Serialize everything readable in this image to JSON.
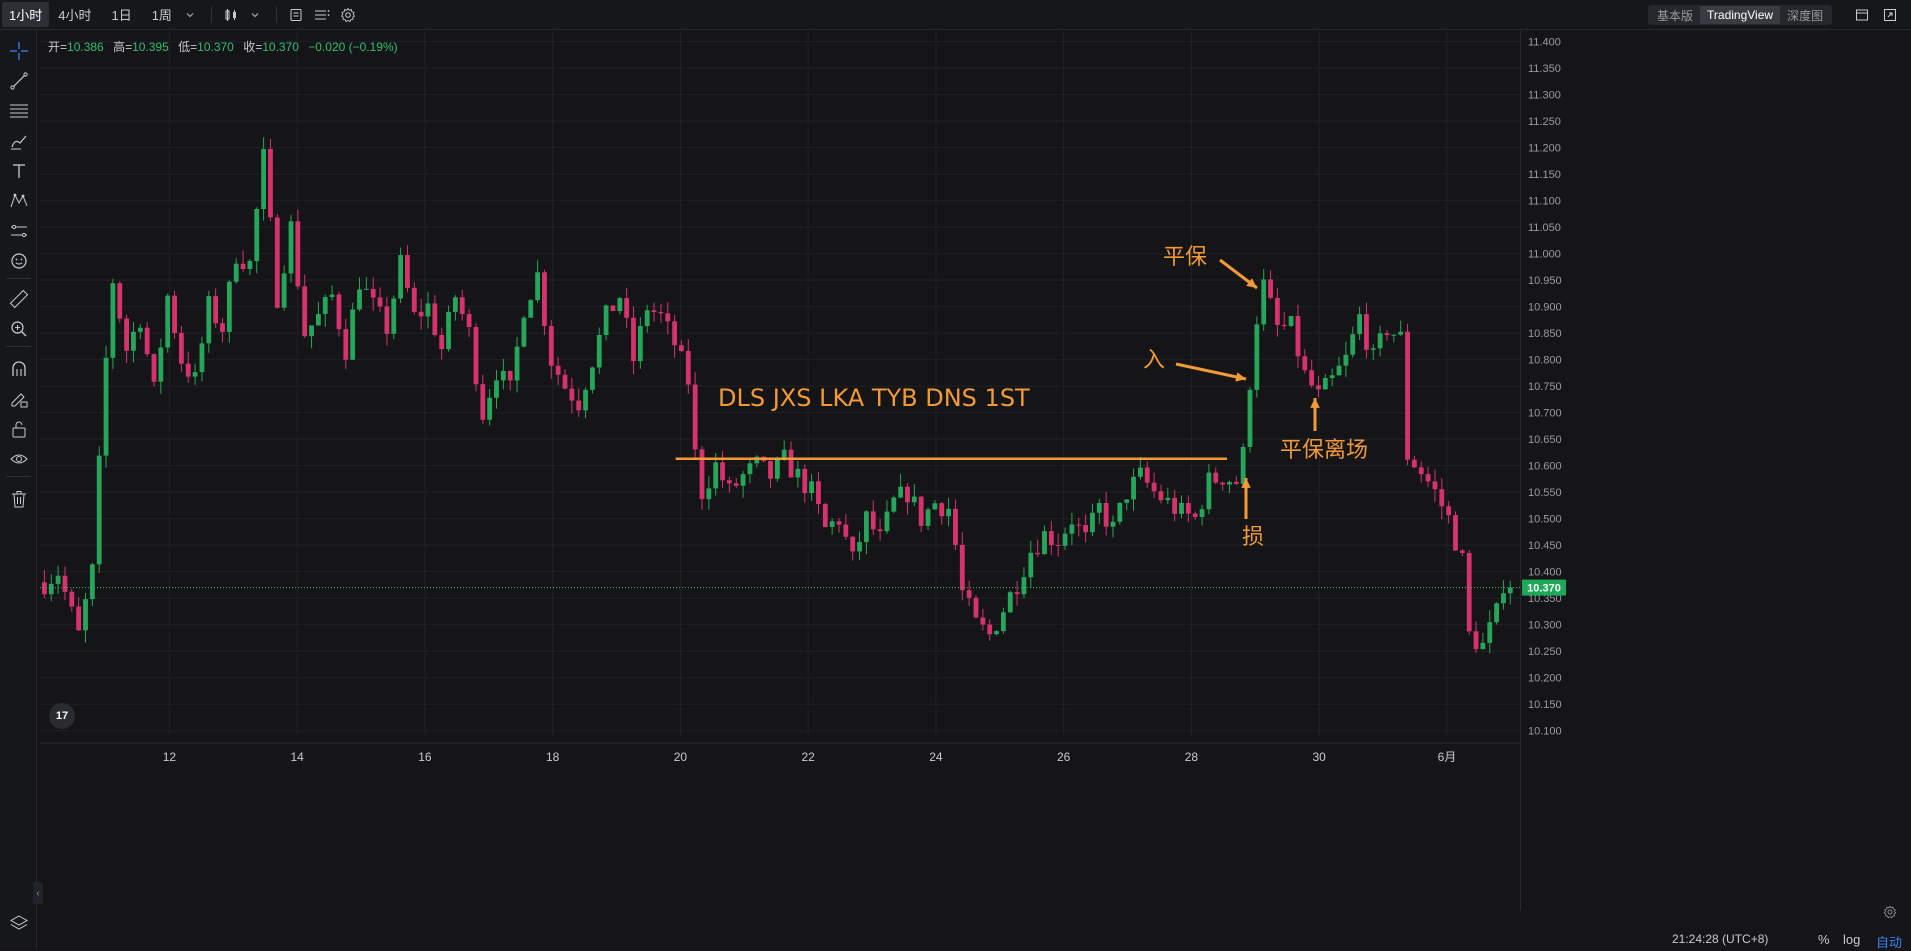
{
  "toolbar": {
    "timeframes": [
      "1小时",
      "4小时",
      "1日",
      "1周"
    ],
    "active_timeframe": "1小时"
  },
  "view_switch": {
    "options": [
      "基本版",
      "TradingView",
      "深度图"
    ],
    "active": "TradingView"
  },
  "ohlc": {
    "open_label": "开=",
    "open": "10.386",
    "high_label": "高=",
    "high": "10.395",
    "low_label": "低=",
    "low": "10.370",
    "close_label": "收=",
    "close": "10.370",
    "change": "−0.020 (−0.19%)"
  },
  "annotations": {
    "pattern_text": "DLS JXS LKA TYB DNS 1ST",
    "breakeven": "平保",
    "entry": "入",
    "stop": "损",
    "breakeven_exit": "平保离场"
  },
  "status": {
    "time": "21:24:28 (UTC+8)",
    "percent": "%",
    "log": "log",
    "auto": "自动"
  },
  "logo_text": "17",
  "colors": {
    "up": "#26a65b",
    "down": "#d6336c",
    "annotation": "#f29a38",
    "price_tag": "#1fa858"
  },
  "chart_data": {
    "type": "candlestick",
    "ylim": [
      10.09,
      11.42
    ],
    "y_ticks": [
      "11.400",
      "11.350",
      "11.300",
      "11.250",
      "11.200",
      "11.150",
      "11.100",
      "11.050",
      "11.000",
      "10.950",
      "10.900",
      "10.850",
      "10.800",
      "10.750",
      "10.700",
      "10.650",
      "10.600",
      "10.550",
      "10.500",
      "10.450",
      "10.400",
      "10.350",
      "10.300",
      "10.250",
      "10.200",
      "10.150",
      "10.100"
    ],
    "x_ticks": [
      "12",
      "14",
      "16",
      "18",
      "20",
      "22",
      "24",
      "26",
      "28",
      "30",
      "6月"
    ],
    "last_price": "10.370",
    "resistance_level": 10.613,
    "path": [
      [
        0,
        10.38
      ],
      [
        2,
        10.4
      ],
      [
        5,
        10.28
      ],
      [
        7,
        10.4
      ],
      [
        9,
        10.8
      ],
      [
        10,
        10.95
      ],
      [
        12,
        10.82
      ],
      [
        14,
        10.88
      ],
      [
        16,
        10.74
      ],
      [
        18,
        10.92
      ],
      [
        20,
        10.8
      ],
      [
        22,
        10.76
      ],
      [
        24,
        10.9
      ],
      [
        26,
        10.86
      ],
      [
        28,
        11.0
      ],
      [
        30,
        10.98
      ],
      [
        32,
        11.18
      ],
      [
        34,
        10.92
      ],
      [
        36,
        11.05
      ],
      [
        38,
        10.85
      ],
      [
        40,
        10.88
      ],
      [
        42,
        10.92
      ],
      [
        44,
        10.82
      ],
      [
        46,
        10.95
      ],
      [
        48,
        10.9
      ],
      [
        50,
        10.86
      ],
      [
        52,
        10.98
      ],
      [
        54,
        10.88
      ],
      [
        56,
        10.9
      ],
      [
        58,
        10.82
      ],
      [
        60,
        10.92
      ],
      [
        62,
        10.85
      ],
      [
        64,
        10.7
      ],
      [
        66,
        10.78
      ],
      [
        68,
        10.74
      ],
      [
        70,
        10.9
      ],
      [
        72,
        10.96
      ],
      [
        74,
        10.8
      ],
      [
        76,
        10.75
      ],
      [
        78,
        10.72
      ],
      [
        80,
        10.8
      ],
      [
        82,
        10.88
      ],
      [
        84,
        10.92
      ],
      [
        86,
        10.8
      ],
      [
        88,
        10.9
      ],
      [
        90,
        10.88
      ],
      [
        92,
        10.83
      ],
      [
        94,
        10.76
      ],
      [
        95,
        10.62
      ],
      [
        96,
        10.55
      ],
      [
        98,
        10.6
      ],
      [
        100,
        10.55
      ],
      [
        102,
        10.58
      ],
      [
        104,
        10.6
      ],
      [
        106,
        10.58
      ],
      [
        108,
        10.61
      ],
      [
        110,
        10.58
      ],
      [
        112,
        10.55
      ],
      [
        114,
        10.48
      ],
      [
        116,
        10.5
      ],
      [
        118,
        10.42
      ],
      [
        120,
        10.5
      ],
      [
        122,
        10.46
      ],
      [
        124,
        10.53
      ],
      [
        126,
        10.55
      ],
      [
        128,
        10.5
      ],
      [
        130,
        10.53
      ],
      [
        132,
        10.52
      ],
      [
        133,
        10.45
      ],
      [
        134,
        10.36
      ],
      [
        136,
        10.3
      ],
      [
        138,
        10.28
      ],
      [
        140,
        10.33
      ],
      [
        142,
        10.38
      ],
      [
        144,
        10.44
      ],
      [
        146,
        10.47
      ],
      [
        148,
        10.46
      ],
      [
        150,
        10.5
      ],
      [
        152,
        10.46
      ],
      [
        154,
        10.52
      ],
      [
        156,
        10.48
      ],
      [
        158,
        10.55
      ],
      [
        160,
        10.58
      ],
      [
        162,
        10.55
      ],
      [
        164,
        10.53
      ],
      [
        166,
        10.51
      ],
      [
        168,
        10.5
      ],
      [
        170,
        10.57
      ],
      [
        172,
        10.58
      ],
      [
        174,
        10.57
      ],
      [
        175,
        10.62
      ],
      [
        176,
        10.76
      ],
      [
        177,
        10.88
      ],
      [
        178,
        10.94
      ],
      [
        180,
        10.86
      ],
      [
        182,
        10.86
      ],
      [
        184,
        10.77
      ],
      [
        186,
        10.73
      ],
      [
        188,
        10.76
      ],
      [
        190,
        10.8
      ],
      [
        192,
        10.88
      ],
      [
        194,
        10.8
      ],
      [
        196,
        10.86
      ],
      [
        198,
        10.84
      ],
      [
        199,
        10.62
      ],
      [
        201,
        10.59
      ],
      [
        203,
        10.55
      ],
      [
        205,
        10.5
      ],
      [
        207,
        10.42
      ],
      [
        208,
        10.28
      ],
      [
        210,
        10.26
      ],
      [
        212,
        10.32
      ],
      [
        213,
        10.38
      ]
    ]
  }
}
